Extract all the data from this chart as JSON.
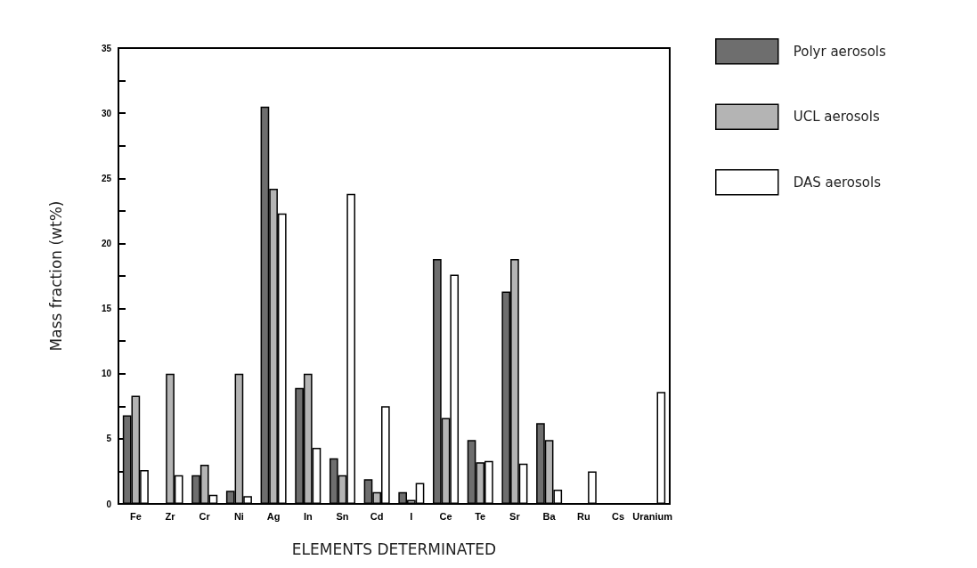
{
  "chart_data": {
    "type": "bar",
    "xlabel": "ELEMENTS DETERMINATED",
    "ylabel": "Mass fraction (wt%)",
    "categories": [
      "Fe",
      "Zr",
      "Cr",
      "Ni",
      "Ag",
      "In",
      "Sn",
      "Cd",
      "I",
      "Ce",
      "Te",
      "Sr",
      "Ba",
      "Ru",
      "Cs",
      "Uranium"
    ],
    "series": [
      {
        "name": "Polyr aerosols",
        "color": "#6e6e6e",
        "values": [
          6.8,
          null,
          2.2,
          1.0,
          30.5,
          8.9,
          3.5,
          1.9,
          0.9,
          18.8,
          4.9,
          16.3,
          6.2,
          null,
          null,
          null
        ]
      },
      {
        "name": "UCL aerosols",
        "color": "#b4b4b4",
        "values": [
          8.3,
          10,
          3.0,
          10,
          24.2,
          10,
          2.2,
          0.9,
          0.3,
          6.6,
          3.2,
          18.8,
          4.9,
          null,
          null,
          null
        ]
      },
      {
        "name": "DAS aerosols",
        "color": "#ffffff",
        "values": [
          2.6,
          2.2,
          0.7,
          0.6,
          22.3,
          4.3,
          23.8,
          7.5,
          1.6,
          17.6,
          3.3,
          3.1,
          1.1,
          2.5,
          null,
          8.6
        ]
      }
    ],
    "ylim": [
      0,
      35
    ],
    "yticks": [
      0,
      {
        "value": 2.5,
        "label": null
      },
      5,
      {
        "value": 7.5,
        "label": null
      },
      10,
      {
        "value": 12.5,
        "label": null
      },
      15,
      {
        "value": 17.5,
        "label": null
      },
      20,
      {
        "value": 22.5,
        "label": null
      },
      25,
      {
        "value": 27.5,
        "label": null
      },
      30,
      {
        "value": 32.5,
        "label": null
      },
      35
    ],
    "grid": false,
    "legend": "top right"
  }
}
